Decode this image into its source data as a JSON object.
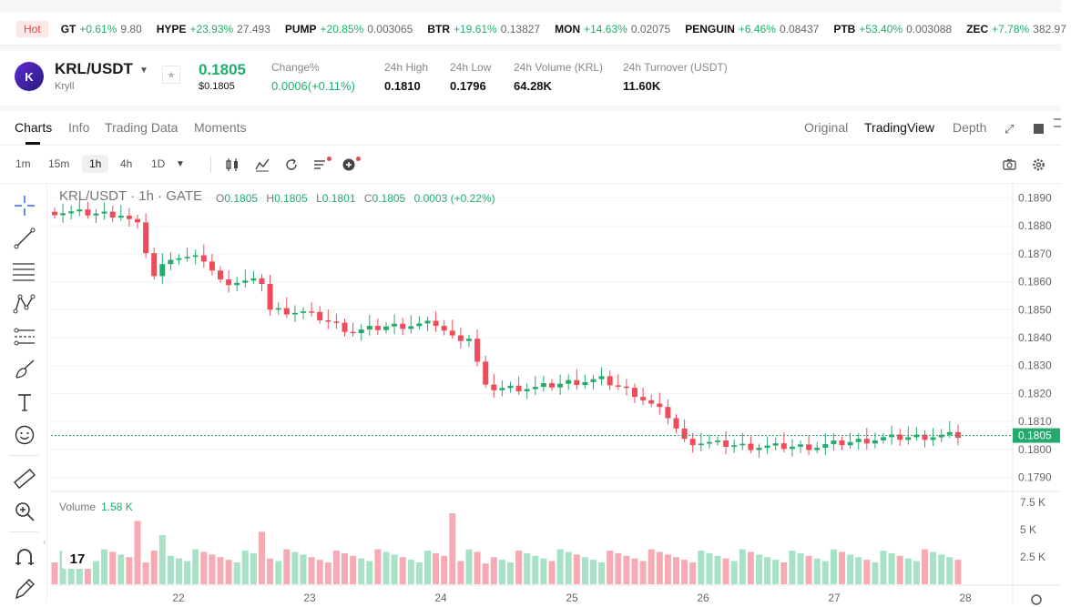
{
  "ticker": {
    "hot_label": "Hot",
    "items": [
      {
        "sym": "GT",
        "chg": "+0.61%",
        "px": "9.80"
      },
      {
        "sym": "HYPE",
        "chg": "+23.93%",
        "px": "27.493"
      },
      {
        "sym": "PUMP",
        "chg": "+20.85%",
        "px": "0.003065"
      },
      {
        "sym": "BTR",
        "chg": "+19.61%",
        "px": "0.13827"
      },
      {
        "sym": "MON",
        "chg": "+14.63%",
        "px": "0.02075"
      },
      {
        "sym": "PENGUIN",
        "chg": "+6.46%",
        "px": "0.08437"
      },
      {
        "sym": "PTB",
        "chg": "+53.40%",
        "px": "0.003088"
      },
      {
        "sym": "ZEC",
        "chg": "+7.78%",
        "px": "382.97"
      }
    ]
  },
  "header": {
    "logo_text": "K",
    "pair": "KRL/USDT",
    "subtitle": "Kryll",
    "star": "★",
    "price": "0.1805",
    "price_usd": "$0.1805",
    "stats": [
      {
        "label": "Change%",
        "value": "0.0006(+0.11%)"
      },
      {
        "label": "24h High",
        "value": "0.1810"
      },
      {
        "label": "24h Low",
        "value": "0.1796"
      },
      {
        "label": "24h Volume (KRL)",
        "value": "64.28K"
      },
      {
        "label": "24h Turnover (USDT)",
        "value": "11.60K"
      }
    ]
  },
  "tabs": [
    "Charts",
    "Info",
    "Trading Data",
    "Moments"
  ],
  "views": [
    "Original",
    "TradingView",
    "Depth"
  ],
  "timeframes": [
    "1m",
    "15m",
    "1h",
    "4h",
    "1D"
  ],
  "chart": {
    "legend": "KRL/USDT · 1h · GATE",
    "ohlc": [
      {
        "k": "O",
        "v": "0.1805"
      },
      {
        "k": "H",
        "v": "0.1805"
      },
      {
        "k": "L",
        "v": "0.1801"
      },
      {
        "k": "C",
        "v": "0.1805"
      }
    ],
    "change": "0.0003 (+0.22%)",
    "volume_label": "Volume",
    "volume_value": "1.58 K",
    "last_price": "0.1805",
    "tv_logo": "17"
  },
  "chart_data": {
    "type": "candlestick",
    "title": "KRL/USDT · 1h · GATE",
    "y_ticks": [
      "0.1890",
      "0.1880",
      "0.1870",
      "0.1860",
      "0.1850",
      "0.1840",
      "0.1830",
      "0.1820",
      "0.1810",
      "0.1800",
      "0.1790"
    ],
    "ylim": [
      0.1785,
      0.1895
    ],
    "x_ticks": [
      "22",
      "23",
      "24",
      "25",
      "26",
      "27",
      "28"
    ],
    "volume_ticks": [
      "7.5 K",
      "5 K",
      "2.5 K"
    ],
    "volume_max": 8000,
    "anchors": [
      [
        0,
        0.1885
      ],
      [
        8,
        0.1884
      ],
      [
        10,
        0.188
      ],
      [
        12,
        0.1862
      ],
      [
        14,
        0.1869
      ],
      [
        18,
        0.1868
      ],
      [
        20,
        0.186
      ],
      [
        25,
        0.186
      ],
      [
        26,
        0.185
      ],
      [
        30,
        0.1849
      ],
      [
        32,
        0.1847
      ],
      [
        36,
        0.1842
      ],
      [
        40,
        0.1844
      ],
      [
        46,
        0.1845
      ],
      [
        48,
        0.184
      ],
      [
        50,
        0.184
      ],
      [
        52,
        0.1822
      ],
      [
        58,
        0.1822
      ],
      [
        62,
        0.1824
      ],
      [
        66,
        0.1825
      ],
      [
        70,
        0.182
      ],
      [
        74,
        0.1812
      ],
      [
        76,
        0.1803
      ],
      [
        84,
        0.1801
      ],
      [
        92,
        0.1801
      ],
      [
        94,
        0.1802
      ],
      [
        100,
        0.1804
      ],
      [
        108,
        0.1805
      ]
    ],
    "volume_spikes": [
      [
        10,
        5800
      ],
      [
        13,
        4500
      ],
      [
        25,
        4800
      ],
      [
        48,
        6500
      ],
      [
        52,
        1900
      ]
    ]
  }
}
